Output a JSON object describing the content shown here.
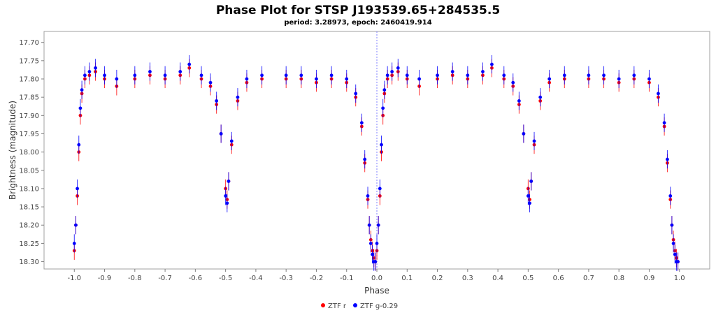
{
  "chart_data": {
    "type": "scatter",
    "title": "Phase Plot for STSP J193539.65+284535.5",
    "subtitle": "period: 3.28973, epoch: 2460419.914",
    "xlabel": "Phase",
    "ylabel": "Brightness (magnitude)",
    "xlim": [
      -1.1,
      1.1
    ],
    "ylim": [
      18.32,
      17.67
    ],
    "y_inverted": true,
    "x_ticks": [
      -1.0,
      -0.9,
      -0.8,
      -0.7,
      -0.6,
      -0.5,
      -0.4,
      -0.3,
      -0.2,
      -0.1,
      0.0,
      0.1,
      0.2,
      0.3,
      0.4,
      0.5,
      0.6,
      0.7,
      0.8,
      0.9,
      1.0
    ],
    "x_tick_labels": [
      "-1.0",
      "-0.9",
      "-0.8",
      "-0.7",
      "-0.6",
      "-0.5",
      "-0.4",
      "-0.3",
      "-0.2",
      "-0.1",
      "0.0",
      "0.1",
      "0.2",
      "0.3",
      "0.4",
      "0.5",
      "0.6",
      "0.7",
      "0.8",
      "0.9",
      "1.0"
    ],
    "y_ticks": [
      17.7,
      17.75,
      17.8,
      17.85,
      17.9,
      17.95,
      18.0,
      18.05,
      18.1,
      18.15,
      18.2,
      18.25,
      18.3
    ],
    "y_tick_labels": [
      "17.70",
      "17.75",
      "17.80",
      "17.85",
      "17.90",
      "17.95",
      "18.00",
      "18.05",
      "18.10",
      "18.15",
      "18.20",
      "18.25",
      "18.30"
    ],
    "reference_line_x": 0.0,
    "grid": false,
    "legend_position": "bottom-center",
    "phase_fold": "points repeated at phase and phase - 1",
    "series": [
      {
        "name": "ZTF r",
        "color": "#ff0000",
        "phase": [
          0.0,
          0.005,
          0.01,
          0.015,
          0.02,
          0.025,
          0.035,
          0.05,
          0.07,
          0.1,
          0.14,
          0.2,
          0.25,
          0.3,
          0.35,
          0.38,
          0.42,
          0.45,
          0.47,
          0.485,
          0.5,
          0.505,
          0.51,
          0.52,
          0.54,
          0.57,
          0.62,
          0.7,
          0.75,
          0.8,
          0.85,
          0.9,
          0.93,
          0.95,
          0.96,
          0.97,
          0.975,
          0.98,
          0.985,
          0.99,
          0.995
        ],
        "magnitude": [
          18.27,
          18.2,
          18.12,
          18.0,
          17.9,
          17.84,
          17.8,
          17.79,
          17.78,
          17.8,
          17.82,
          17.8,
          17.79,
          17.8,
          17.79,
          17.77,
          17.8,
          17.82,
          17.87,
          17.95,
          18.1,
          18.13,
          18.08,
          17.98,
          17.86,
          17.81,
          17.8,
          17.8,
          17.8,
          17.81,
          17.8,
          17.81,
          17.85,
          17.93,
          18.03,
          18.13,
          18.2,
          18.24,
          18.27,
          18.29,
          18.3
        ],
        "error": 0.025
      },
      {
        "name": "ZTF g-0.29",
        "color": "#0000ff",
        "phase": [
          0.0,
          0.005,
          0.01,
          0.015,
          0.02,
          0.025,
          0.035,
          0.05,
          0.07,
          0.1,
          0.14,
          0.2,
          0.25,
          0.3,
          0.35,
          0.38,
          0.42,
          0.45,
          0.47,
          0.485,
          0.5,
          0.505,
          0.51,
          0.52,
          0.54,
          0.57,
          0.62,
          0.7,
          0.75,
          0.8,
          0.85,
          0.9,
          0.93,
          0.95,
          0.96,
          0.97,
          0.975,
          0.98,
          0.985,
          0.99,
          0.995
        ],
        "magnitude": [
          18.25,
          18.2,
          18.1,
          17.98,
          17.88,
          17.83,
          17.79,
          17.78,
          17.77,
          17.79,
          17.8,
          17.79,
          17.78,
          17.79,
          17.78,
          17.76,
          17.79,
          17.81,
          17.86,
          17.95,
          18.12,
          18.14,
          18.08,
          17.97,
          17.85,
          17.8,
          17.79,
          17.79,
          17.79,
          17.8,
          17.79,
          17.8,
          17.84,
          17.92,
          18.02,
          18.12,
          18.2,
          18.25,
          18.28,
          18.3,
          18.3
        ],
        "error": 0.025
      }
    ]
  }
}
